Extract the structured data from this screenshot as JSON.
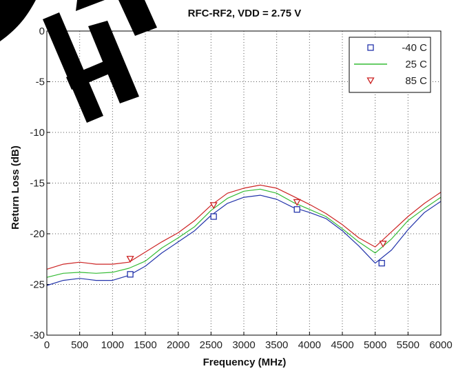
{
  "chart_data": {
    "type": "line",
    "title": "RFC-RF2, VDD = 2.75 V",
    "xlabel": "Frequency (MHz)",
    "ylabel": "Return Loss (dB)",
    "xlim": [
      0,
      6000
    ],
    "ylim": [
      -30,
      0
    ],
    "xticks": [
      "0",
      "500",
      "1000",
      "1500",
      "2000",
      "2500",
      "3000",
      "3500",
      "4000",
      "4500",
      "5000",
      "5500",
      "6000"
    ],
    "yticks": [
      "0",
      "-5",
      "-10",
      "-15",
      "-20",
      "-25",
      "-30"
    ],
    "grid": true,
    "legend_position": "top-right",
    "x": [
      0,
      250,
      500,
      750,
      1000,
      1250,
      1500,
      1750,
      2000,
      2250,
      2500,
      2750,
      3000,
      3250,
      3500,
      3750,
      4000,
      4250,
      4500,
      4750,
      5000,
      5250,
      5500,
      5750,
      6000
    ],
    "series": [
      {
        "name": "-40 C",
        "color": "#2233aa",
        "marker": "square",
        "marker_x": [
          1270,
          2540,
          3810,
          5100
        ],
        "marker_y": [
          -24.0,
          -18.3,
          -17.6,
          -22.9
        ],
        "values": [
          -25.1,
          -24.6,
          -24.4,
          -24.6,
          -24.6,
          -24.1,
          -23.2,
          -21.9,
          -20.8,
          -19.7,
          -18.2,
          -17.0,
          -16.4,
          -16.2,
          -16.6,
          -17.4,
          -17.9,
          -18.5,
          -19.7,
          -21.2,
          -22.9,
          -21.6,
          -19.6,
          -17.9,
          -16.8
        ]
      },
      {
        "name": "25 C",
        "color": "#33bb33",
        "marker": "none",
        "values": [
          -24.3,
          -23.9,
          -23.8,
          -23.9,
          -23.8,
          -23.4,
          -22.7,
          -21.4,
          -20.4,
          -19.3,
          -17.7,
          -16.5,
          -15.8,
          -15.6,
          -16.0,
          -16.9,
          -17.6,
          -18.3,
          -19.5,
          -20.8,
          -21.9,
          -20.5,
          -18.7,
          -17.5,
          -16.4
        ]
      },
      {
        "name": "85 C",
        "color": "#cc2222",
        "marker": "triangle-down",
        "marker_x": [
          1270,
          2540,
          3810,
          5120
        ],
        "marker_y": [
          -22.5,
          -17.2,
          -16.9,
          -21.0
        ],
        "values": [
          -23.5,
          -23.0,
          -22.8,
          -23.0,
          -23.0,
          -22.8,
          -21.8,
          -20.8,
          -19.9,
          -18.7,
          -17.2,
          -16.0,
          -15.5,
          -15.2,
          -15.5,
          -16.3,
          -17.1,
          -18.0,
          -19.1,
          -20.4,
          -21.3,
          -19.8,
          -18.3,
          -17.0,
          -15.9
        ]
      }
    ]
  }
}
